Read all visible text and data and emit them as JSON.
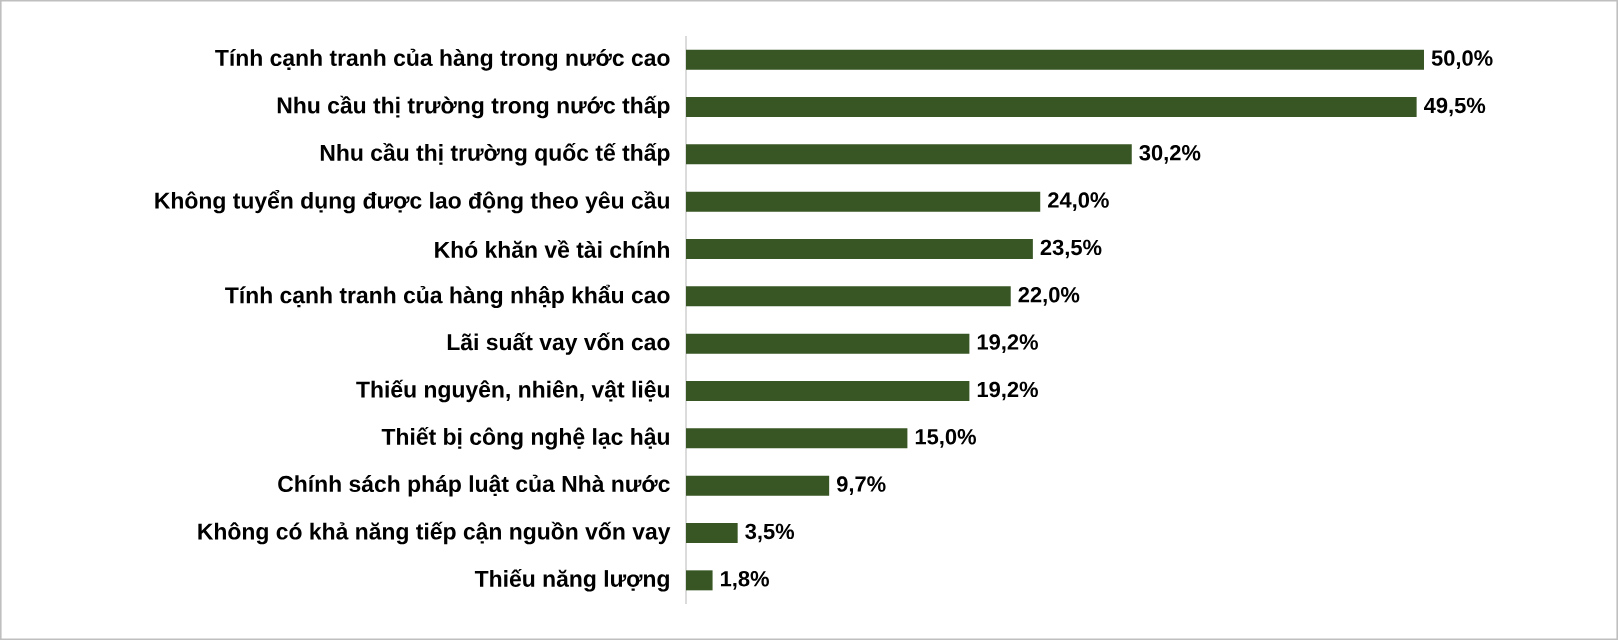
{
  "chart_data": {
    "type": "bar",
    "orientation": "horizontal",
    "categories": [
      "Tính cạnh tranh của hàng trong nước cao",
      "Nhu cầu thị trường trong nước thấp",
      "Nhu cầu thị trường quốc tế thấp",
      "Không tuyển dụng được lao động theo yêu cầu",
      "Khó khăn về tài chính",
      "Tính cạnh tranh của hàng nhập khẩu cao",
      "Lãi suất vay vốn cao",
      "Thiếu nguyên, nhiên, vật liệu",
      "Thiết bị công nghệ lạc hậu",
      "Chính sách pháp luật của Nhà nước",
      "Không có khả năng tiếp cận nguồn vốn vay",
      "Thiếu năng lượng"
    ],
    "values": [
      50.0,
      49.5,
      30.2,
      24.0,
      23.5,
      22.0,
      19.2,
      19.2,
      15.0,
      9.7,
      3.5,
      1.8
    ],
    "value_labels": [
      "50,0%",
      "49,5%",
      "30,2%",
      "24,0%",
      "23,5%",
      "22,0%",
      "19,2%",
      "19,2%",
      "15,0%",
      "9,7%",
      "3,5%",
      "1,8%"
    ],
    "color": "#375623"
  }
}
